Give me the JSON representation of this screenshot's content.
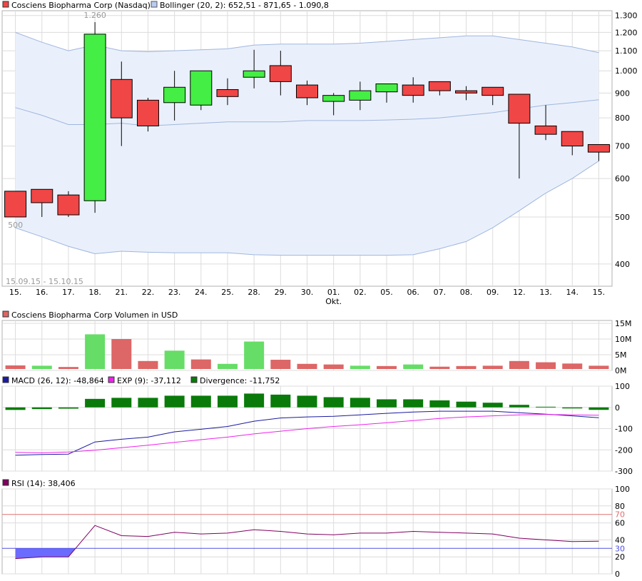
{
  "colors": {
    "up": "#44ee44",
    "down": "#f04646",
    "vol_up": "#66dd66",
    "vol_down": "#dd6666",
    "boll_fill": "#eaf0fb",
    "boll_line": "#9fb6df",
    "macd": "#1a1aa0",
    "exp": "#ee22ee",
    "divergence": "#0a7a0a",
    "rsi": "#800060",
    "rsi_fill": "#6b6bff",
    "rsi70": "#e07070",
    "rsi30": "#5050e0"
  },
  "legend": {
    "price_label": "Cosciens Biopharma Corp (Nasdaq)",
    "boll_label": "Bollinger (20, 2): 652,51 - 871,65 - 1.090,8",
    "volume_label": "Cosciens Biopharma Corp Volumen in USD",
    "macd_label": "MACD (26, 12): -48,864",
    "exp_label": "EXP (9): -37,112",
    "div_label": "Divergence: -11,752",
    "rsi_label": "RSI (14): 38,406"
  },
  "chart_data": [
    {
      "type": "candlestick",
      "scale": "log",
      "date_range_label": "15.09.15 - 15.10.15",
      "categories": [
        "15.",
        "16.",
        "17.",
        "18.",
        "21.",
        "22.",
        "23.",
        "24.",
        "25.",
        "28.",
        "29.",
        "30.",
        "01.",
        "02.",
        "05.",
        "06.",
        "07.",
        "08.",
        "09.",
        "12.",
        "13.",
        "14.",
        "15."
      ],
      "month_label": "Okt.",
      "yticks": [
        {
          "v": 400,
          "l": "400"
        },
        {
          "v": 500,
          "l": "500"
        },
        {
          "v": 600,
          "l": "600"
        },
        {
          "v": 700,
          "l": "700"
        },
        {
          "v": 800,
          "l": "800"
        },
        {
          "v": 900,
          "l": "900"
        },
        {
          "v": 1000,
          "l": "1.000"
        },
        {
          "v": 1100,
          "l": "1.100"
        },
        {
          "v": 1200,
          "l": "1.200"
        },
        {
          "v": 1300,
          "l": "1.300"
        }
      ],
      "ylim": [
        360,
        1330
      ],
      "annotations": [
        {
          "index": 3,
          "value": 1260,
          "label": "1.260",
          "pos": "above"
        },
        {
          "index": 0,
          "value": 500,
          "label": "500",
          "pos": "below"
        }
      ],
      "ohlc": [
        [
          565,
          565,
          500,
          500
        ],
        [
          570,
          570,
          500,
          535
        ],
        [
          555,
          565,
          500,
          505
        ],
        [
          540,
          1260,
          510,
          1190
        ],
        [
          960,
          1045,
          700,
          800
        ],
        [
          870,
          880,
          750,
          770
        ],
        [
          860,
          1000,
          790,
          925
        ],
        [
          850,
          1000,
          830,
          1000
        ],
        [
          915,
          965,
          850,
          885
        ],
        [
          970,
          1105,
          920,
          1000
        ],
        [
          1025,
          1100,
          890,
          950
        ],
        [
          935,
          955,
          850,
          880
        ],
        [
          865,
          900,
          810,
          890
        ],
        [
          870,
          950,
          830,
          910
        ],
        [
          905,
          940,
          860,
          940
        ],
        [
          935,
          970,
          860,
          890
        ],
        [
          950,
          950,
          890,
          910
        ],
        [
          910,
          930,
          870,
          900
        ],
        [
          925,
          925,
          850,
          890
        ],
        [
          895,
          895,
          600,
          780
        ],
        [
          770,
          850,
          720,
          740
        ],
        [
          750,
          750,
          670,
          700
        ],
        [
          705,
          705,
          652,
          680
        ]
      ],
      "boll_upper": [
        1200,
        1145,
        1100,
        1130,
        1100,
        1095,
        1100,
        1105,
        1110,
        1130,
        1135,
        1135,
        1135,
        1140,
        1150,
        1160,
        1170,
        1180,
        1180,
        1160,
        1140,
        1120,
        1090
      ],
      "boll_middle": [
        840,
        810,
        775,
        775,
        780,
        770,
        775,
        780,
        785,
        785,
        785,
        790,
        790,
        790,
        792,
        795,
        800,
        810,
        820,
        835,
        850,
        860,
        872
      ],
      "boll_lower": [
        475,
        455,
        435,
        420,
        425,
        423,
        422,
        422,
        422,
        418,
        417,
        417,
        417,
        417,
        417,
        418,
        430,
        445,
        475,
        515,
        560,
        600,
        652
      ]
    },
    {
      "type": "bar",
      "title": "Volumen",
      "yticks": [
        {
          "v": 0,
          "l": "0M"
        },
        {
          "v": 5,
          "l": "5M"
        },
        {
          "v": 10,
          "l": "10M"
        },
        {
          "v": 15,
          "l": "15M"
        }
      ],
      "ylim": [
        0,
        15
      ],
      "values": [
        1.6,
        1.5,
        1.1,
        11.5,
        10.0,
        3.0,
        6.3,
        3.5,
        2.1,
        9.2,
        3.4,
        2.1,
        1.9,
        1.5,
        1.4,
        1.9,
        1.2,
        1.4,
        1.5,
        3.0,
        2.6,
        2.2,
        1.5
      ],
      "up": [
        false,
        true,
        false,
        true,
        false,
        false,
        true,
        false,
        true,
        true,
        false,
        false,
        false,
        true,
        false,
        true,
        false,
        false,
        false,
        false,
        false,
        false,
        false
      ]
    },
    {
      "type": "line",
      "title": "MACD",
      "yticks": [
        {
          "v": -300,
          "l": "-300"
        },
        {
          "v": -200,
          "l": "-200"
        },
        {
          "v": -100,
          "l": "-100"
        },
        {
          "v": 0,
          "l": "0"
        },
        {
          "v": 100,
          "l": "100"
        }
      ],
      "ylim": [
        -300,
        100
      ],
      "series": [
        {
          "name": "MACD",
          "values": [
            -225,
            -222,
            -220,
            -163,
            -150,
            -140,
            -115,
            -103,
            -90,
            -65,
            -50,
            -45,
            -42,
            -35,
            -28,
            -22,
            -18,
            -18,
            -18,
            -25,
            -32,
            -40,
            -48.864
          ]
        },
        {
          "name": "EXP",
          "values": [
            -212,
            -214,
            -210,
            -202,
            -190,
            -178,
            -165,
            -152,
            -140,
            -125,
            -112,
            -100,
            -90,
            -82,
            -72,
            -62,
            -52,
            -45,
            -40,
            -35,
            -33,
            -35,
            -37.112
          ]
        }
      ],
      "divergence": [
        -12,
        -8,
        -6,
        40,
        45,
        45,
        55,
        55,
        55,
        65,
        60,
        55,
        48,
        45,
        38,
        38,
        33,
        27,
        22,
        12,
        3,
        -5,
        -11.752
      ]
    },
    {
      "type": "line",
      "title": "RSI",
      "yticks": [
        {
          "v": 0,
          "l": "0"
        },
        {
          "v": 20,
          "l": "20"
        },
        {
          "v": 40,
          "l": "40"
        },
        {
          "v": 60,
          "l": "60"
        },
        {
          "v": 80,
          "l": "80"
        },
        {
          "v": 100,
          "l": "100"
        }
      ],
      "ylim": [
        0,
        100
      ],
      "levels": [
        {
          "v": 70,
          "l": "70"
        },
        {
          "v": 30,
          "l": "30"
        }
      ],
      "values": [
        18,
        20,
        20,
        57,
        45,
        44,
        49,
        47,
        48,
        52,
        50,
        47,
        46,
        48,
        48,
        50,
        49,
        48,
        47,
        42,
        40,
        38,
        38.406
      ]
    }
  ]
}
